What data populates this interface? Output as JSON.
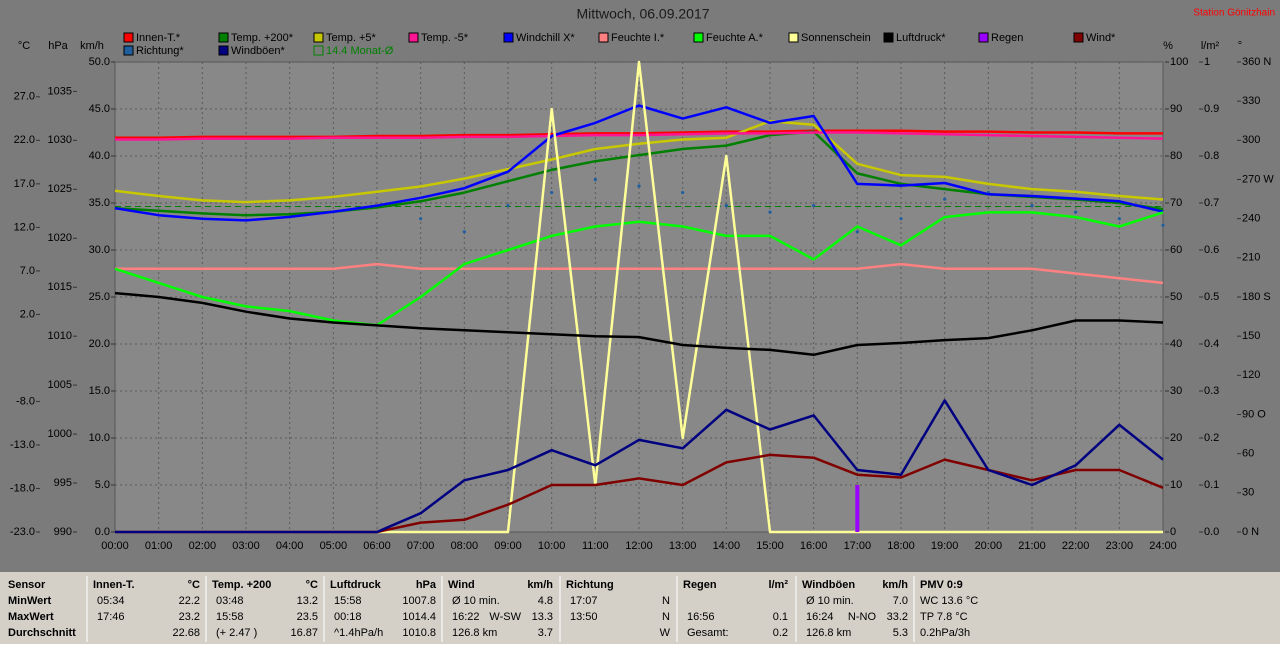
{
  "chart_data": {
    "type": "line",
    "title": "Mittwoch, 06.09.2017",
    "station": "Station Gönitzhain",
    "categories": [
      "00:00",
      "01:00",
      "02:00",
      "03:00",
      "04:00",
      "05:00",
      "06:00",
      "07:00",
      "08:00",
      "09:00",
      "10:00",
      "11:00",
      "12:00",
      "13:00",
      "14:00",
      "15:00",
      "16:00",
      "17:00",
      "18:00",
      "19:00",
      "20:00",
      "21:00",
      "22:00",
      "23:00",
      "24:00"
    ],
    "grid": true,
    "axes": [
      {
        "label": "°C",
        "lim": [
          -23,
          31
        ],
        "ticks": [
          {
            "value": 27,
            "label": "27.0"
          },
          {
            "value": 22,
            "label": "22.0"
          },
          {
            "value": 17,
            "label": "17.0"
          },
          {
            "value": 12,
            "label": "12.0"
          },
          {
            "value": 7,
            "label": "7.0"
          },
          {
            "value": 2,
            "label": "2.0"
          },
          {
            "value": -8,
            "label": "-8.0"
          },
          {
            "value": -13,
            "label": "-13.0"
          },
          {
            "value": -18,
            "label": "-18.0"
          },
          {
            "value": -23,
            "label": "-23.0"
          }
        ]
      },
      {
        "label": "hPa",
        "lim": [
          990,
          1038
        ],
        "ticks": [
          1035,
          1030,
          1025,
          1020,
          1015,
          1010,
          1005,
          1000,
          995,
          990
        ]
      },
      {
        "label": "km/h",
        "lim": [
          0,
          50
        ],
        "grid": true,
        "ticks": [
          {
            "value": 50,
            "label": "50.0"
          },
          {
            "value": 45,
            "label": "45.0"
          },
          {
            "value": 40,
            "label": "40.0"
          },
          {
            "value": 35,
            "label": "35.0"
          },
          {
            "value": 30,
            "label": "30.0"
          },
          {
            "value": 25,
            "label": "25.0"
          },
          {
            "value": 20,
            "label": "20.0"
          },
          {
            "value": 15,
            "label": "15.0"
          },
          {
            "value": 10,
            "label": "10.0"
          },
          {
            "value": 5,
            "label": "5.0"
          },
          {
            "value": 0,
            "label": "0.0"
          }
        ]
      },
      {
        "label": "%",
        "lim": [
          0,
          100
        ],
        "ticks": [
          100,
          90,
          80,
          70,
          60,
          50,
          40,
          30,
          20,
          10,
          0
        ]
      },
      {
        "label": "l/m²",
        "lim": [
          0,
          1
        ],
        "ticks": [
          1,
          0.9,
          0.8,
          0.7,
          0.6,
          0.5,
          0.4,
          0.3,
          0.2,
          0.1,
          {
            "value": 0,
            "label": "0.0"
          }
        ]
      },
      {
        "label": "°",
        "lim": [
          0,
          360
        ],
        "ticks": [
          {
            "value": 360,
            "label": "360 N"
          },
          330,
          300,
          {
            "value": 270,
            "label": "270 W"
          },
          240,
          210,
          {
            "value": 180,
            "label": "180 S"
          },
          150,
          120,
          {
            "value": 90,
            "label": "90 O"
          },
          60,
          30,
          {
            "value": 0,
            "label": "0 N"
          }
        ]
      }
    ],
    "series": [
      {
        "name": "Innen-T.*",
        "color": "#ff0000",
        "axis": 0,
        "style": "line",
        "values": [
          22.3,
          22.3,
          22.4,
          22.4,
          22.4,
          22.4,
          22.5,
          22.5,
          22.6,
          22.6,
          22.7,
          22.8,
          22.8,
          22.9,
          23.0,
          23.0,
          23.1,
          23.1,
          23.1,
          23.0,
          23.0,
          22.9,
          22.9,
          22.8,
          22.8
        ]
      },
      {
        "name": "Temp. +200*",
        "color": "#008000",
        "axis": 0,
        "style": "line",
        "values": [
          14.2,
          13.9,
          13.6,
          13.4,
          13.5,
          13.8,
          14.3,
          15.0,
          16.0,
          17.3,
          18.6,
          19.6,
          20.3,
          21.0,
          21.4,
          22.6,
          23.0,
          18.2,
          17.0,
          16.4,
          15.8,
          15.5,
          15.2,
          14.8,
          14.1
        ]
      },
      {
        "name": "Temp. +5*",
        "color": "#c8c800",
        "axis": 0,
        "style": "line",
        "values": [
          16.2,
          15.6,
          15.1,
          14.9,
          15.1,
          15.5,
          16.1,
          16.7,
          17.6,
          18.7,
          19.8,
          21.0,
          21.6,
          22.1,
          22.3,
          24.2,
          23.8,
          19.3,
          18.0,
          17.8,
          17.0,
          16.4,
          16.1,
          15.6,
          15.2
        ]
      },
      {
        "name": "Temp. -5*",
        "color": "#ff1493",
        "axis": 0,
        "style": "line",
        "values": [
          22.1,
          22.1,
          22.2,
          22.2,
          22.2,
          22.3,
          22.3,
          22.3,
          22.4,
          22.4,
          22.5,
          22.6,
          22.6,
          22.7,
          22.8,
          22.8,
          22.9,
          22.9,
          22.8,
          22.7,
          22.6,
          22.5,
          22.4,
          22.3,
          22.2
        ]
      },
      {
        "name": "Windchill X*",
        "color": "#0000ff",
        "axis": 0,
        "style": "line",
        "values": [
          14.2,
          13.4,
          13.0,
          12.8,
          13.2,
          13.8,
          14.5,
          15.4,
          16.5,
          18.4,
          22.5,
          24.0,
          26.0,
          24.5,
          25.8,
          24.0,
          24.8,
          17.0,
          16.8,
          17.1,
          15.8,
          15.6,
          15.3,
          15.0,
          13.8
        ]
      },
      {
        "name": "Feuchte I.*",
        "color": "#ff8080",
        "axis": 3,
        "style": "line",
        "values": [
          56,
          56,
          56,
          56,
          56,
          56,
          57,
          56,
          56,
          56,
          56,
          56,
          56,
          56,
          56,
          56,
          56,
          56,
          57,
          56,
          56,
          56,
          55,
          54,
          53
        ]
      },
      {
        "name": "Feuchte A.*",
        "color": "#00ff00",
        "axis": 3,
        "style": "line",
        "values": [
          56,
          53,
          50,
          48,
          47,
          45,
          44,
          50,
          57,
          60,
          63,
          65,
          66,
          65,
          63,
          63,
          58,
          65,
          61,
          67,
          68,
          68,
          67,
          65,
          68
        ]
      },
      {
        "name": "Sonnenschein",
        "color": "#ffff99",
        "axis": 3,
        "style": "line",
        "values": [
          0,
          0,
          0,
          0,
          0,
          0,
          0,
          0,
          0,
          0,
          90,
          10,
          100,
          20,
          80,
          0,
          0,
          0,
          0,
          0,
          0,
          0,
          0,
          0,
          0
        ]
      },
      {
        "name": "Luftdruck*",
        "color": "#000000",
        "axis": 1,
        "style": "line",
        "values": [
          1014.4,
          1014.0,
          1013.4,
          1012.5,
          1011.8,
          1011.4,
          1011.1,
          1010.8,
          1010.6,
          1010.4,
          1010.2,
          1010.0,
          1009.9,
          1009.1,
          1008.8,
          1008.6,
          1008.1,
          1009.1,
          1009.3,
          1009.6,
          1009.8,
          1010.6,
          1011.6,
          1011.6,
          1011.4
        ]
      },
      {
        "name": "Regen",
        "color": "#9900ff",
        "axis": 4,
        "style": "bar",
        "values": [
          0,
          0,
          0,
          0,
          0,
          0,
          0,
          0,
          0,
          0,
          0,
          0,
          0,
          0,
          0,
          0,
          0,
          0.1,
          0,
          0,
          0,
          0,
          0,
          0,
          0
        ]
      },
      {
        "name": "Wind*",
        "color": "#800000",
        "axis": 2,
        "style": "line",
        "values": [
          0,
          0,
          0,
          0,
          0,
          0,
          0,
          1.0,
          1.3,
          2.9,
          5.0,
          5.0,
          5.7,
          5.0,
          7.4,
          8.2,
          7.9,
          6.1,
          5.8,
          7.7,
          6.6,
          5.5,
          6.6,
          6.6,
          4.7
        ]
      },
      {
        "name": "Richtung*",
        "color": "#1f5fa0",
        "axis": 5,
        "style": "dots",
        "values": [
          null,
          null,
          null,
          null,
          null,
          null,
          null,
          240,
          230,
          250,
          260,
          270,
          265,
          260,
          250,
          245,
          250,
          230,
          240,
          255,
          260,
          250,
          245,
          240,
          235
        ]
      },
      {
        "name": "Windböen*",
        "color": "#000080",
        "axis": 2,
        "style": "line",
        "values": [
          0,
          0,
          0,
          0,
          0,
          0,
          0,
          2.0,
          5.5,
          6.6,
          8.7,
          7.1,
          9.8,
          8.9,
          13.0,
          10.9,
          12.4,
          6.6,
          6.1,
          14.0,
          6.6,
          5.0,
          7.1,
          11.4,
          7.7
        ]
      },
      {
        "name": "14.4 Monat-Ø",
        "color": "#008000",
        "axis": 0,
        "style": "dashed",
        "value": 14.4
      }
    ]
  },
  "table": {
    "row_labels": [
      "Sensor",
      "MinWert",
      "MaxWert",
      "Durchschnitt"
    ],
    "groups": [
      {
        "title": "Innen-T.",
        "unit": "°C",
        "rows": [
          [
            "05:34",
            "22.2"
          ],
          [
            "17:46",
            "23.2"
          ],
          [
            null,
            "22.68"
          ]
        ]
      },
      {
        "title": "Temp. +200",
        "unit": "°C",
        "rows": [
          [
            "03:48",
            "13.2"
          ],
          [
            "15:58",
            "23.5"
          ],
          [
            "(+ 2.47 )",
            "16.87"
          ]
        ]
      },
      {
        "title": "Luftdruck",
        "unit": "hPa",
        "rows": [
          [
            "15:58",
            "1007.8"
          ],
          [
            "00:18",
            "1014.4"
          ],
          [
            "^1.4hPa/h",
            "1010.8"
          ]
        ]
      },
      {
        "title": "Wind",
        "unit": "km/h",
        "rows": [
          [
            "Ø 10 min.",
            "4.8"
          ],
          [
            "16:22",
            "13.3",
            "W-SW"
          ],
          [
            "126.8 km",
            "3.7"
          ]
        ]
      },
      {
        "title": "Richtung",
        "unit": null,
        "rows": [
          [
            "17:07",
            "N"
          ],
          [
            "13:50",
            "N"
          ],
          [
            null,
            "W"
          ]
        ]
      },
      {
        "title": "Regen",
        "unit": "l/m²",
        "rows": [
          [
            null,
            null
          ],
          [
            "16:56",
            "0.1"
          ],
          [
            "Gesamt:",
            "0.2"
          ]
        ]
      },
      {
        "title": "Windböen",
        "unit": "km/h",
        "rows": [
          [
            "Ø 10 min.",
            "7.0"
          ],
          [
            "16:24",
            "33.2",
            "N-NO"
          ],
          [
            "126.8 km",
            "5.3"
          ]
        ]
      },
      {
        "title": "PMV 0:9",
        "unit": null,
        "rows": [
          [
            "WC 13.6 °C",
            null
          ],
          [
            "TP 7.8 °C",
            null
          ],
          [
            "0.2hPa/3h",
            null
          ]
        ]
      }
    ]
  }
}
